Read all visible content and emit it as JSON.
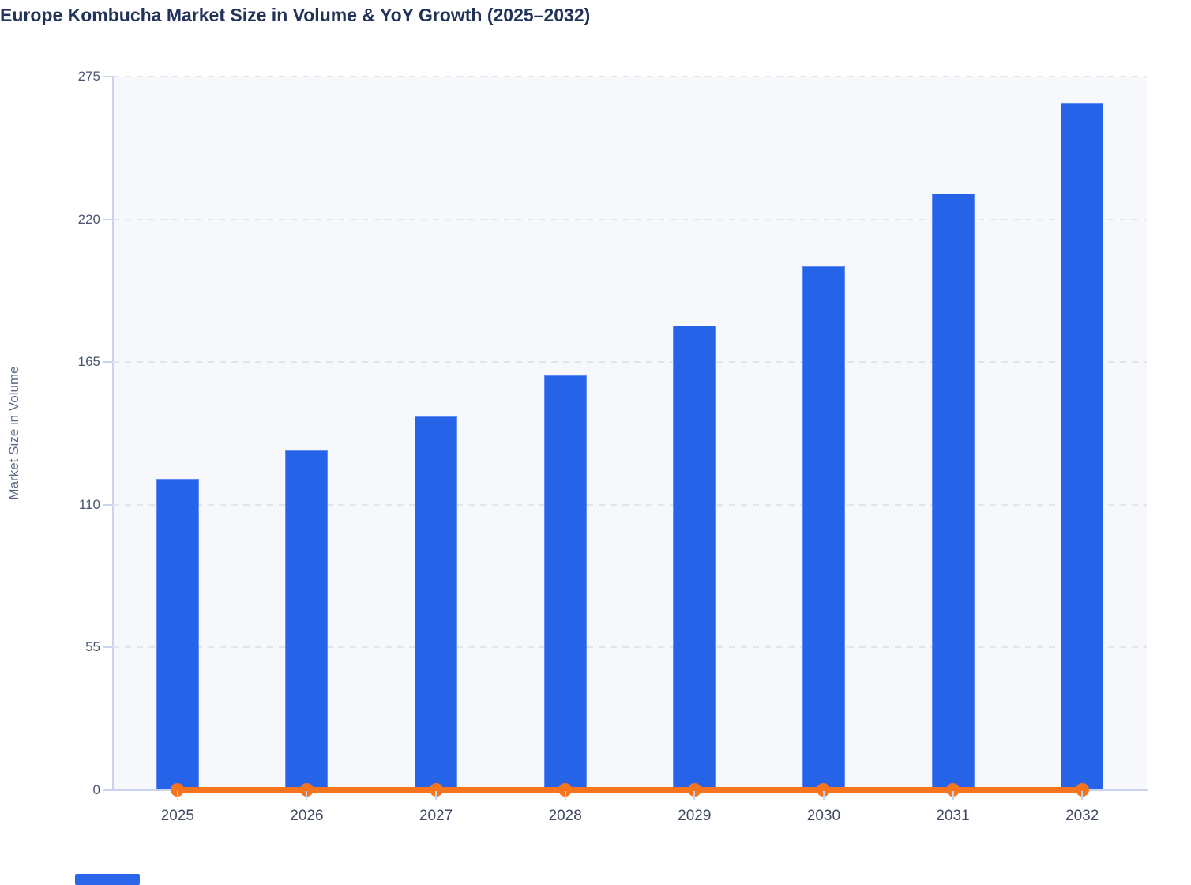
{
  "page": {
    "title": "Europe Kombucha Market Size in Volume & YoY Growth (2025–2032)"
  },
  "chart_data": {
    "type": "bar",
    "title": "Europe Kombucha Market Size in Volume & YoY Growth (2025–2032)",
    "categories": [
      "2025",
      "2026",
      "2027",
      "2028",
      "2029",
      "2030",
      "2031",
      "2032"
    ],
    "series": [
      {
        "name": "Market Size in Volume",
        "type": "bar",
        "color": "#2563e8",
        "values": [
          120,
          131,
          144,
          160,
          179,
          202,
          230,
          265
        ]
      },
      {
        "name": "YoY Growth",
        "type": "line",
        "color": "#f7741f",
        "marker": "circle",
        "values": [
          0,
          0,
          0,
          0,
          0,
          0,
          0,
          0
        ]
      }
    ],
    "xlabel": "",
    "ylabel": "Market Size in Volume",
    "yticks": [
      0,
      55,
      110,
      165,
      220,
      275
    ],
    "ylim": [
      0,
      275
    ],
    "grid": "horizontal dashed",
    "legend_position": "none",
    "colors": {
      "plot_background": "#f7f8fc",
      "axis_line": "#c9d3f0",
      "gridline": "#e3e5ea",
      "title_text": "#22335a",
      "tick_text": "#4b5670",
      "axis_title_text": "#5b6b87"
    }
  }
}
